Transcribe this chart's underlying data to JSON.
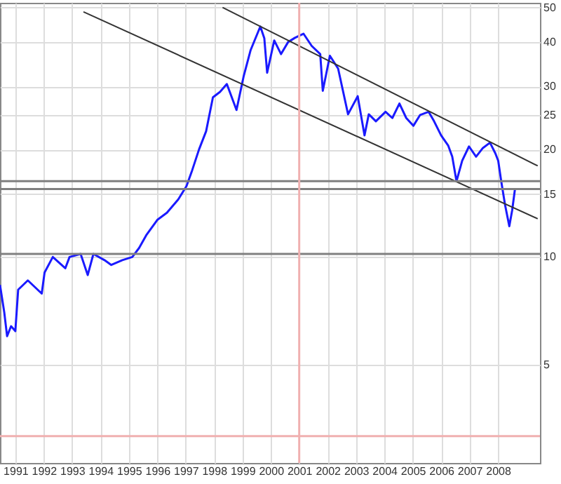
{
  "chart_data": {
    "type": "line",
    "log": "y",
    "grid": true,
    "marker": "none",
    "line_style": "solid",
    "xlim": [
      1990.46,
      2009.48
    ],
    "ylim": [
      2.65,
      51.5
    ],
    "xticks": [
      1991,
      1992,
      1993,
      1994,
      1995,
      1996,
      1997,
      1998,
      1999,
      2000,
      2001,
      2002,
      2003,
      2004,
      2005,
      2006,
      2007,
      2008
    ],
    "yticks": [
      5,
      10,
      15,
      20,
      25,
      30,
      40,
      50
    ],
    "series": [
      {
        "color": "#1a1aff",
        "x": [
          1990.46,
          1990.61,
          1990.71,
          1990.85,
          1991.0,
          1991.1,
          1991.44,
          1991.93,
          1992.03,
          1992.32,
          1992.76,
          1992.91,
          1993.3,
          1993.55,
          1993.75,
          1994.14,
          1994.38,
          1994.77,
          1995.12,
          1995.36,
          1995.61,
          1996.0,
          1996.34,
          1996.74,
          1997.03,
          1997.23,
          1997.47,
          1997.72,
          1997.96,
          1998.21,
          1998.45,
          1998.79,
          1999.04,
          1999.29,
          1999.63,
          1999.77,
          1999.87,
          2000.12,
          2000.36,
          2000.61,
          2000.85,
          2001.15,
          2001.44,
          2001.74,
          2001.83,
          2002.08,
          2002.37,
          2002.72,
          2003.06,
          2003.3,
          2003.45,
          2003.7,
          2004.04,
          2004.28,
          2004.53,
          2004.77,
          2005.02,
          2005.26,
          2005.56,
          2005.75,
          2006.0,
          2006.25,
          2006.39,
          2006.54,
          2006.74,
          2006.98,
          2007.23,
          2007.47,
          2007.72,
          2007.91,
          2008.01,
          2008.11,
          2008.25,
          2008.4,
          2008.5,
          2008.6
        ],
        "values": [
          8.35,
          7.0,
          6.0,
          6.4,
          6.2,
          8.1,
          8.6,
          7.9,
          9.05,
          10.0,
          9.3,
          10.0,
          10.2,
          8.9,
          10.2,
          9.8,
          9.5,
          9.8,
          10.0,
          10.6,
          11.5,
          12.7,
          13.3,
          14.5,
          15.8,
          17.5,
          20,
          22.5,
          28,
          29,
          30.5,
          25.8,
          32,
          38,
          44.2,
          41,
          32.8,
          40.4,
          37,
          40,
          41.1,
          42.2,
          39,
          37,
          29.2,
          36.6,
          33.7,
          25.1,
          28.2,
          21.9,
          25.1,
          24,
          25.5,
          24.5,
          26.9,
          24.5,
          23.3,
          25,
          25.5,
          24,
          21.9,
          20.5,
          19.1,
          16.3,
          18.6,
          20.4,
          19.1,
          20.2,
          20.9,
          19.5,
          18.6,
          16.4,
          14.0,
          12.2,
          13.5,
          15.5
        ]
      },
      {
        "color": "#333333",
        "x": [
          1998.3,
          2009.4
        ],
        "values": [
          50,
          18
        ]
      },
      {
        "color": "#333333",
        "x": [
          1993.4,
          2009.4
        ],
        "values": [
          48.6,
          12.8
        ]
      }
    ],
    "ref_lines": [
      {
        "axis": "y",
        "value": 16.3,
        "color": "#808080"
      },
      {
        "axis": "y",
        "value": 15.5,
        "color": "#808080"
      },
      {
        "axis": "y",
        "value": 10.2,
        "color": "#808080"
      },
      {
        "axis": "y",
        "value": 3.15,
        "color": "#f0b0b0"
      },
      {
        "axis": "x",
        "value": 2001,
        "color": "#f0b0b0"
      }
    ]
  }
}
